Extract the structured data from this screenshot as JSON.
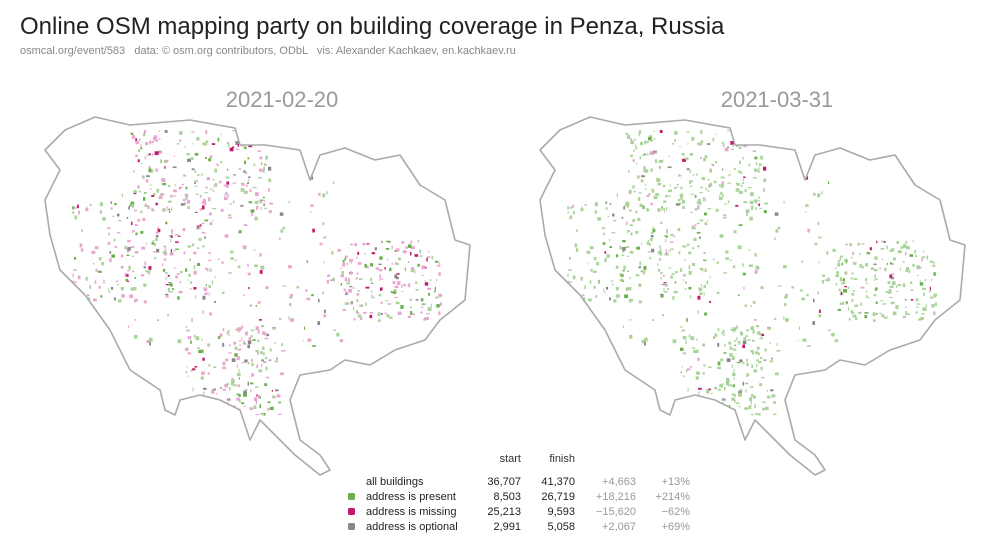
{
  "header": {
    "title": "Online OSM mapping party on building coverage in Penza, Russia",
    "subtitle": "osmcal.org/event/583   data: © osm.org contributors, ODbL   vis: Alexander Kachkaev, en.kachkaev.ru"
  },
  "maps": [
    {
      "date": "2021-02-20"
    },
    {
      "date": "2021-03-31"
    }
  ],
  "table": {
    "columns": [
      "start",
      "finish"
    ],
    "rows": [
      {
        "label": "all buildings",
        "start": "36,707",
        "finish": "41,370",
        "change": "+4,663",
        "percent": "+13%"
      },
      {
        "label": "address is present",
        "start": "8,503",
        "finish": "26,719",
        "change": "+18,216",
        "percent": "+214%"
      },
      {
        "label": "address is missing",
        "start": "25,213",
        "finish": "9,593",
        "change": "−15,620",
        "percent": "−62%"
      },
      {
        "label": "address is optional",
        "start": "2,991",
        "finish": "5,058",
        "change": "+2,067",
        "percent": "+69%"
      }
    ]
  }
}
